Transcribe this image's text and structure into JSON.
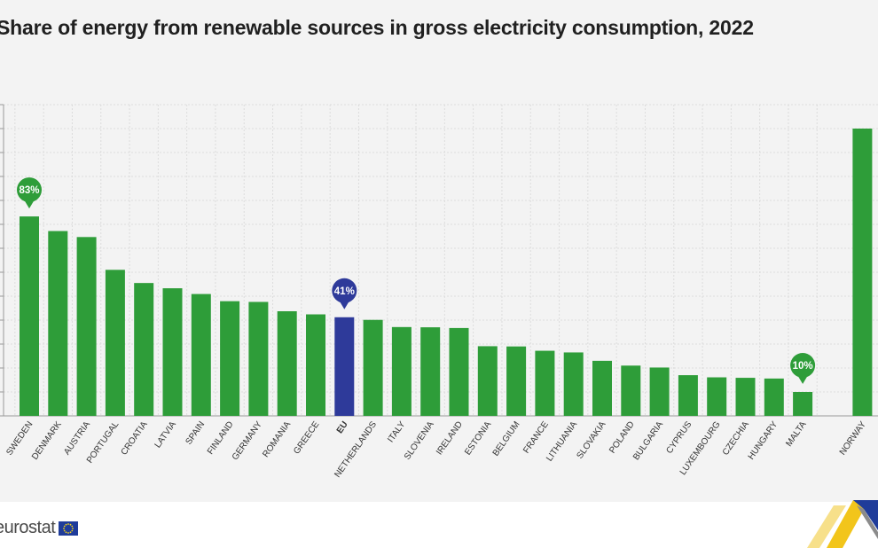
{
  "chart_data": {
    "type": "bar",
    "title": "Share of energy from renewable sources in gross electricity consumption, 2022",
    "unit": "%",
    "ylim": [
      0,
      130
    ],
    "grid": true,
    "categories": [
      "SWEDEN",
      "DENMARK",
      "AUSTRIA",
      "PORTUGAL",
      "CROATIA",
      "LATVIA",
      "SPAIN",
      "FINLAND",
      "GERMANY",
      "ROMANIA",
      "GREECE",
      "EU",
      "NETHERLANDS",
      "ITALY",
      "SLOVENIA",
      "IRELAND",
      "ESTONIA",
      "BELGIUM",
      "FRANCE",
      "LITHUANIA",
      "SLOVAKIA",
      "POLAND",
      "BULGARIA",
      "CYPRUS",
      "LUXEMBOURG",
      "CZECHIA",
      "HUNGARY",
      "MALTA",
      "NORWAY"
    ],
    "values": [
      83.3,
      77.2,
      74.7,
      61.0,
      55.5,
      53.3,
      50.9,
      47.9,
      47.6,
      43.7,
      42.4,
      41.2,
      40.1,
      37.1,
      37.0,
      36.7,
      29.1,
      29.0,
      27.2,
      26.5,
      23.0,
      21.0,
      20.2,
      17.0,
      16.1,
      15.9,
      15.6,
      10.0,
      120.0
    ],
    "highlight": "EU",
    "callouts": [
      {
        "category": "SWEDEN",
        "label": "83%",
        "color": "#2e9d39"
      },
      {
        "category": "EU",
        "label": "41%",
        "color": "#2e3a9a"
      },
      {
        "category": "MALTA",
        "label": "10%",
        "color": "#2e9d39"
      }
    ],
    "colors": {
      "default": "#2e9d39",
      "highlight": "#2e3a9a",
      "grid": "#dcdcdc",
      "axis": "#9a9a9a"
    }
  },
  "footer": {
    "logo_text": "eurostat"
  }
}
